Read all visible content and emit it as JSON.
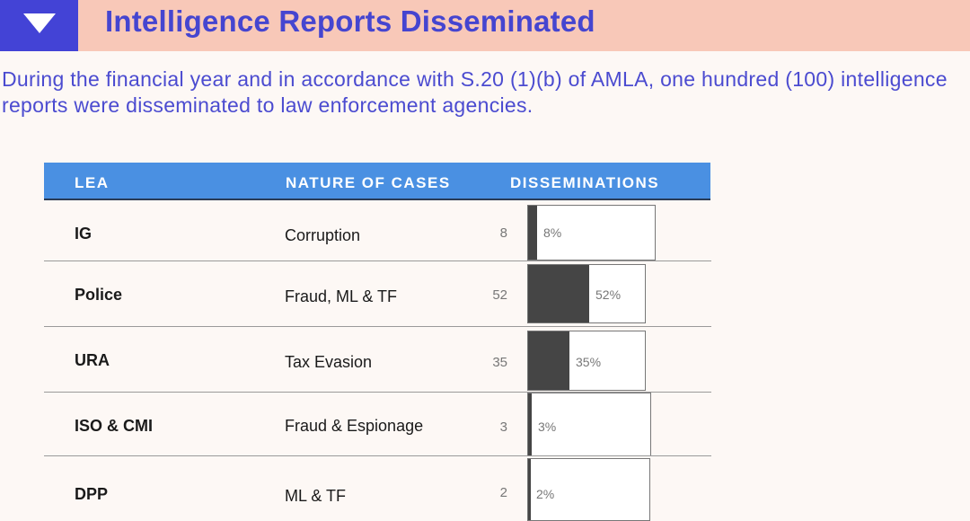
{
  "header": {
    "title": "Intelligence Reports Disseminated",
    "toggle_icon": "triangle-down-icon"
  },
  "intro": "During the financial year and in accordance with S.20 (1)(b) of AMLA, one hundred (100) intelligence reports were disseminated to law enforcement agencies.",
  "table": {
    "columns": [
      "LEA",
      "NATURE OF CASES",
      "DISSEMINATIONS"
    ],
    "rows": [
      {
        "lea": "IG",
        "nature": "Corruption",
        "count": "8",
        "pct_label": "8%",
        "fraction": 0.08
      },
      {
        "lea": "Police",
        "nature": "Fraud, ML & TF",
        "count": "52",
        "pct_label": "52%",
        "fraction": 0.52
      },
      {
        "lea": "URA",
        "nature": "Tax Evasion",
        "count": "35",
        "pct_label": "35%",
        "fraction": 0.35
      },
      {
        "lea": "ISO & CMI",
        "nature": "Fraud & Espionage",
        "count": "3",
        "pct_label": "3%",
        "fraction": 0.03
      },
      {
        "lea": "DPP",
        "nature": "ML & TF",
        "count": "2",
        "pct_label": "2%",
        "fraction": 0.02
      }
    ]
  },
  "colors": {
    "header_band": "#f8c8b8",
    "toggle_box": "#4343d6",
    "title_text": "#4545d0",
    "table_header": "#4a90e2",
    "bar_fill": "#454545"
  }
}
